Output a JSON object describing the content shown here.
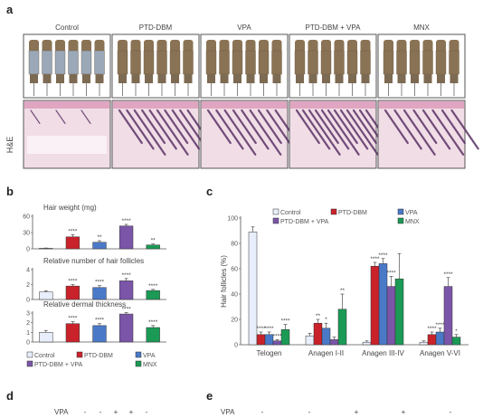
{
  "panels": {
    "a": "a",
    "b": "b",
    "c": "c",
    "d": "d",
    "e": "e"
  },
  "panel_a": {
    "groups": [
      "Control",
      "PTD-DBM",
      "VPA",
      "PTD-DBM + VPA",
      "MNX"
    ],
    "stain_label": "H&E",
    "colors": {
      "frame": "#555555",
      "mouse_fur": "#8a7355",
      "mouse_skin": "#9aa8b8",
      "tissue_bg": "#f1dde6",
      "tissue_dark": "#5a3266",
      "tissue_pink": "#d98fb0"
    }
  },
  "panel_d": {
    "row_label": "VPA",
    "marks": [
      "-",
      "-",
      "+",
      "+",
      "-"
    ]
  },
  "panel_e": {
    "row_label": "VPA",
    "marks": [
      "-",
      "-",
      "+",
      "+",
      "-"
    ]
  },
  "chart_data": [
    {
      "type": "bar",
      "panel": "b",
      "title": "Hair weight (mg)",
      "categories": [
        "Control",
        "PTD-DBM",
        "VPA",
        "PTD-DBM + VPA",
        "MNX"
      ],
      "values": [
        1,
        22,
        12,
        42,
        7
      ],
      "errors": [
        0.5,
        4,
        3,
        3,
        2
      ],
      "stars": [
        "",
        "****",
        "**",
        "****",
        "**"
      ],
      "yticks": [
        0,
        30,
        60
      ],
      "ylim": [
        0,
        60
      ]
    },
    {
      "type": "bar",
      "panel": "b",
      "title": "Relative number of hair follicles",
      "categories": [
        "Control",
        "PTD-DBM",
        "VPA",
        "PTD-DBM + VPA",
        "MNX"
      ],
      "values": [
        1,
        1.8,
        1.6,
        2.5,
        1.2
      ],
      "errors": [
        0.15,
        0.2,
        0.25,
        0.3,
        0.15
      ],
      "stars": [
        "",
        "****",
        "****",
        "****",
        "****"
      ],
      "yticks": [
        0,
        2,
        4
      ],
      "ylim": [
        0,
        4
      ]
    },
    {
      "type": "bar",
      "panel": "b",
      "title": "Relative dermal thickness",
      "categories": [
        "Control",
        "PTD-DBM",
        "VPA",
        "PTD-DBM + VPA",
        "MNX"
      ],
      "values": [
        1,
        1.9,
        1.7,
        2.9,
        1.5
      ],
      "errors": [
        0.2,
        0.2,
        0.2,
        0.15,
        0.2
      ],
      "stars": [
        "",
        "****",
        "****",
        "****",
        "****"
      ],
      "yticks": [
        0,
        1,
        2,
        3
      ],
      "ylim": [
        0,
        3
      ]
    },
    {
      "type": "bar",
      "panel": "c",
      "ylabel": "Hair follicles (%)",
      "categories": [
        "Telogen",
        "Anagen I-II",
        "Anagen III-IV",
        "Anagen V-VI"
      ],
      "series": [
        {
          "name": "Control",
          "color": "#e8eefb",
          "values": [
            89,
            7,
            2,
            2
          ],
          "errors": [
            4,
            2,
            1,
            1
          ],
          "stars": [
            "",
            "",
            "",
            ""
          ]
        },
        {
          "name": "PTD-DBM",
          "color": "#c9222b",
          "values": [
            8,
            17,
            62,
            8
          ],
          "errors": [
            2,
            3,
            3,
            2
          ],
          "stars": [
            "****",
            "**",
            "****",
            "****"
          ]
        },
        {
          "name": "VPA",
          "color": "#4a79c8",
          "values": [
            8,
            13,
            64,
            10
          ],
          "errors": [
            2,
            4,
            4,
            3
          ],
          "stars": [
            "****",
            "*",
            "****",
            "****"
          ]
        },
        {
          "name": "PTD-DBM + VPA",
          "color": "#7b55a8",
          "values": [
            3,
            4,
            46,
            46
          ],
          "errors": [
            1,
            2,
            8,
            7
          ],
          "stars": [
            "****",
            "",
            "****",
            "****"
          ]
        },
        {
          "name": "MNX",
          "color": "#1b9a55",
          "values": [
            12,
            28,
            52,
            6
          ],
          "errors": [
            4,
            12,
            20,
            2
          ],
          "stars": [
            "****",
            "**",
            "",
            "*"
          ]
        }
      ],
      "yticks": [
        0,
        20,
        40,
        60,
        80,
        100
      ],
      "ylim": [
        0,
        100
      ]
    }
  ],
  "legend_b": [
    "Control",
    "PTD-DBM",
    "VPA",
    "PTD-DBM + VPA",
    "MNX"
  ],
  "legend_c": [
    "Control",
    "PTD-DBM",
    "VPA",
    "PTD-DBM + VPA",
    "MNX"
  ]
}
